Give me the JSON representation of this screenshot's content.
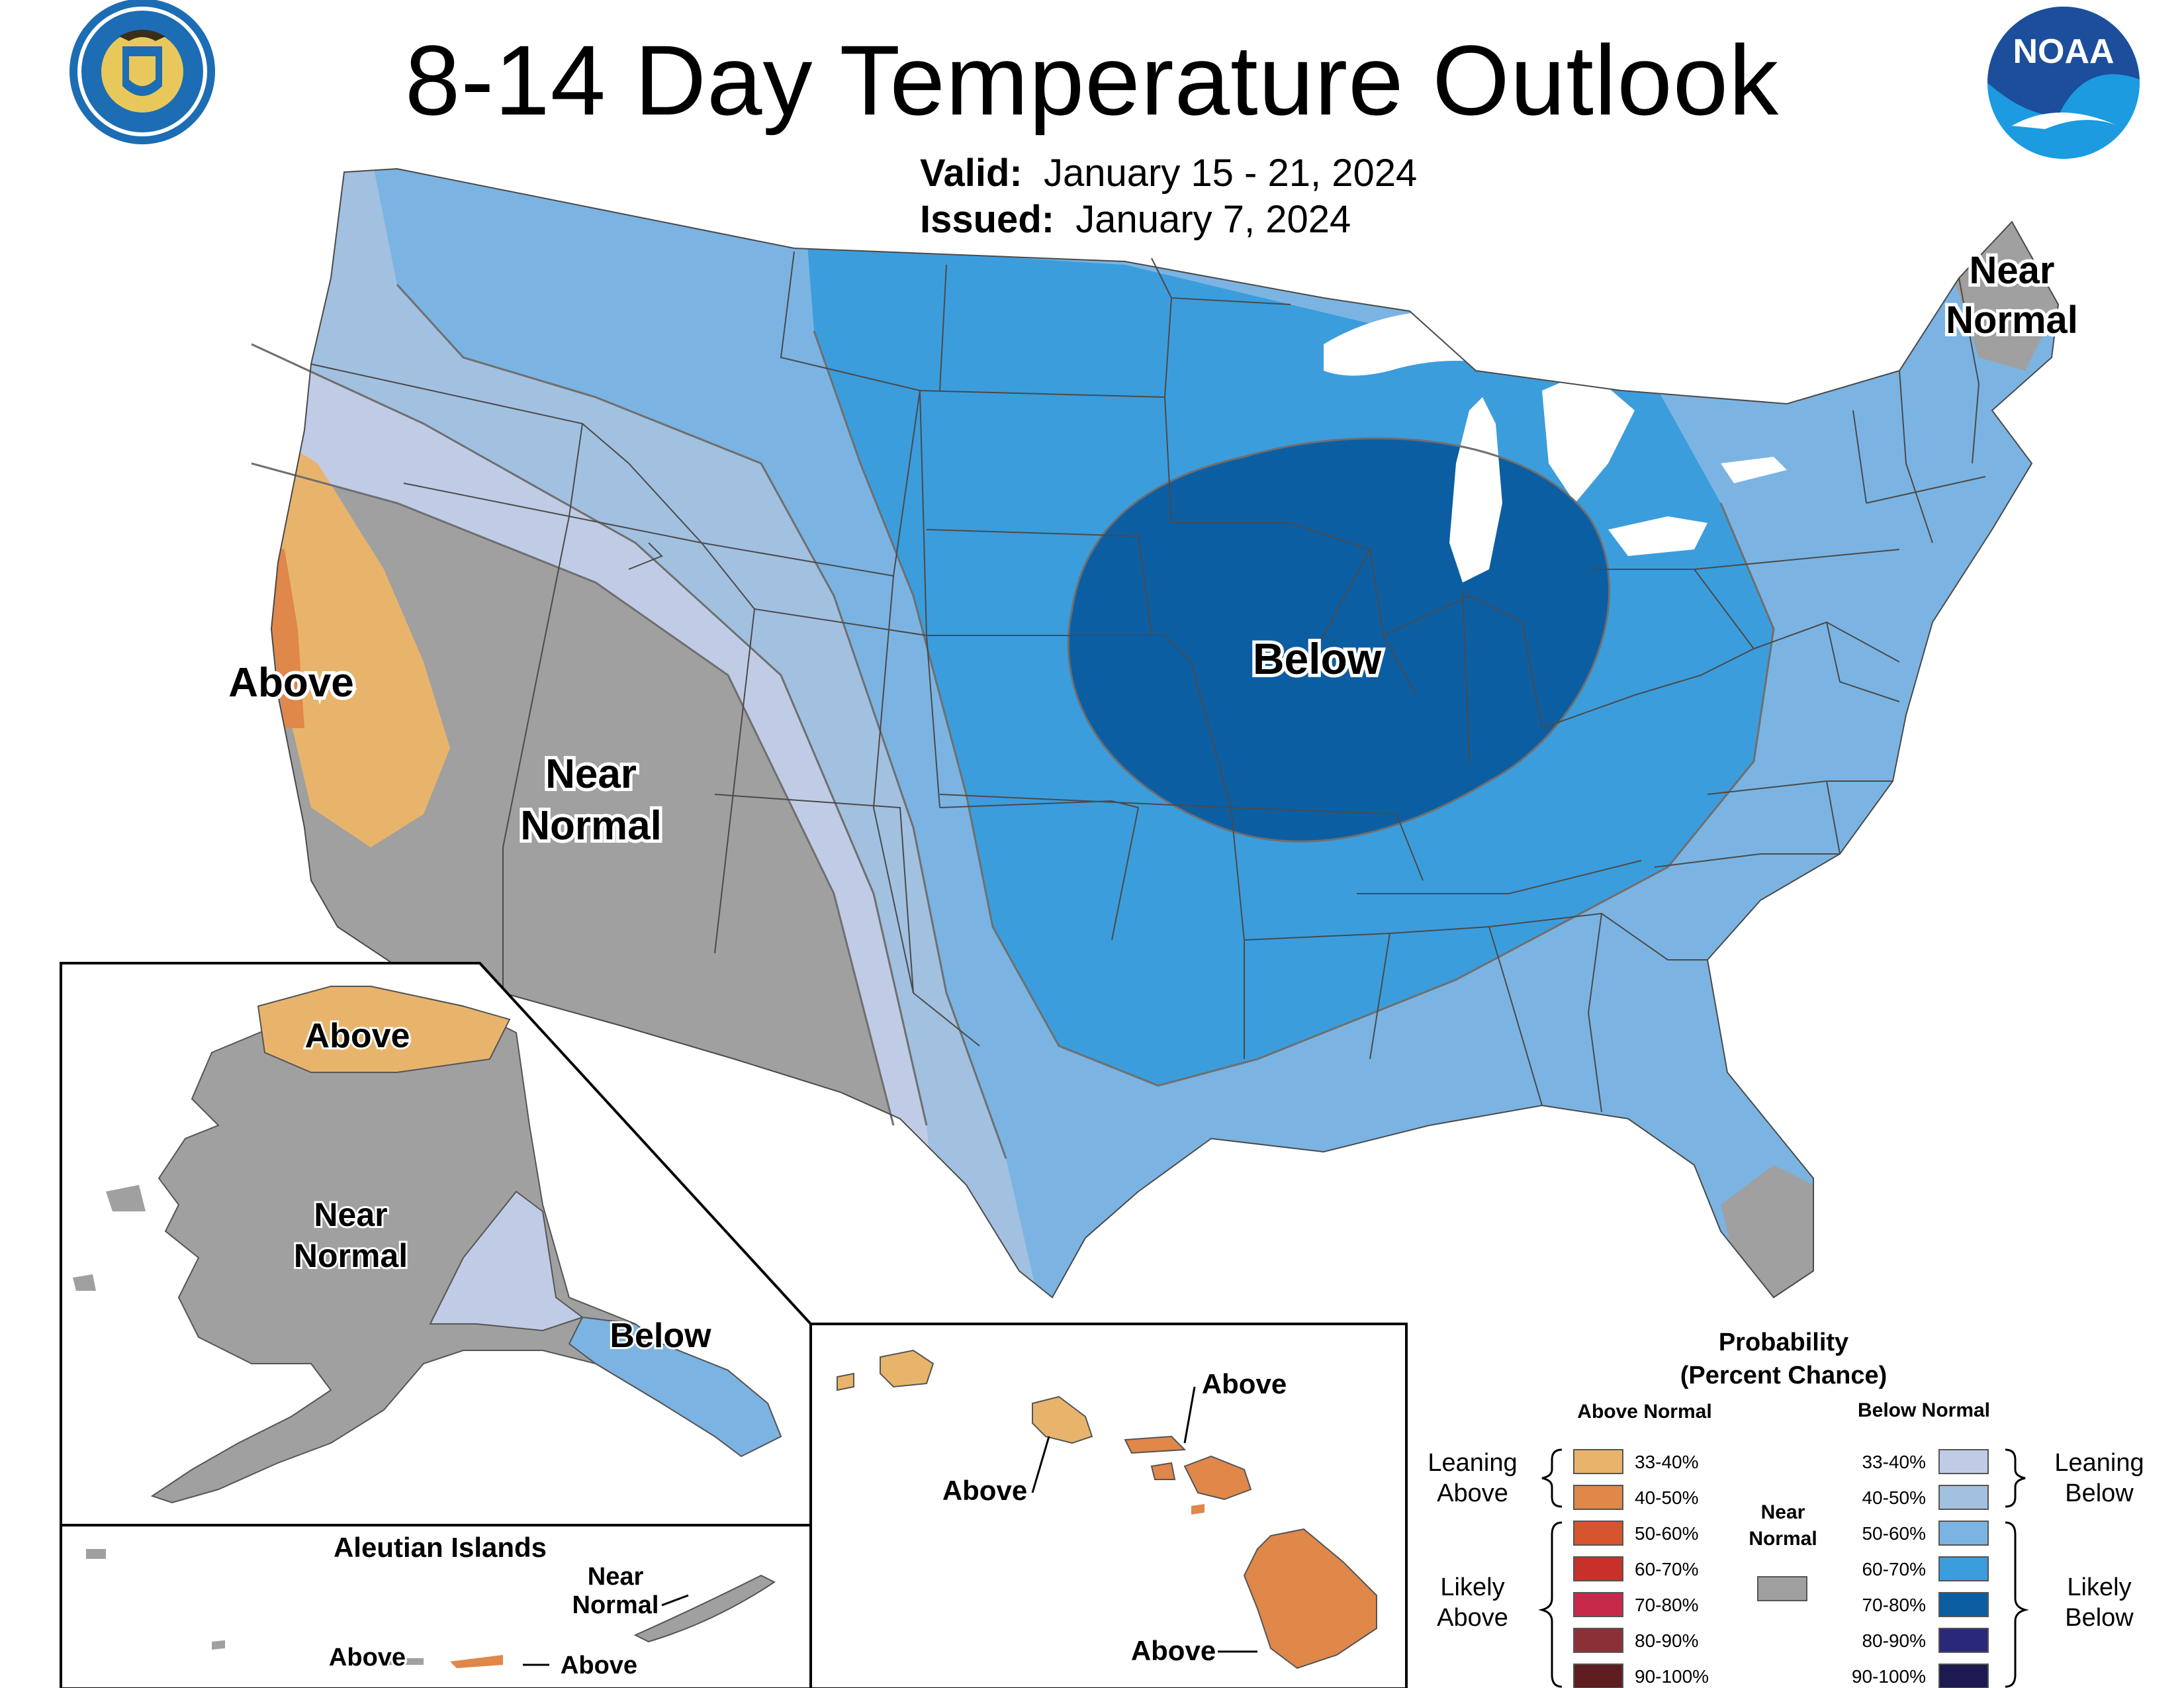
{
  "header": {
    "title": "8-14 Day Temperature Outlook",
    "valid_label": "Valid:",
    "valid_value": "January 15 - 21, 2024",
    "issued_label": "Issued:",
    "issued_value": "January 7, 2024"
  },
  "logos": {
    "left": "Department of Commerce seal",
    "right": "NOAA"
  },
  "map_labels": {
    "conus_below": "Below",
    "conus_above": "Above",
    "conus_near_line1": "Near",
    "conus_near_line2": "Normal",
    "northeast_near_line1": "Near",
    "northeast_near_line2": "Normal",
    "alaska_above": "Above",
    "alaska_near_line1": "Near",
    "alaska_near_line2": "Normal",
    "alaska_below": "Below",
    "aleutian_title": "Aleutian Islands",
    "aleutian_near_line1": "Near",
    "aleutian_near_line2": "Normal",
    "aleutian_above_left": "Above",
    "aleutian_above_right": "Above",
    "hawaii_above_top": "Above",
    "hawaii_above_left": "Above",
    "hawaii_above_bottom": "Above"
  },
  "legend": {
    "title_line1": "Probability",
    "title_line2": "(Percent Chance)",
    "above_header": "Above Normal",
    "below_header": "Below Normal",
    "near_line1": "Near",
    "near_line2": "Normal",
    "leaning_above_line1": "Leaning",
    "leaning_above_line2": "Above",
    "likely_above_line1": "Likely",
    "likely_above_line2": "Above",
    "leaning_below_line1": "Leaning",
    "leaning_below_line2": "Below",
    "likely_below_line1": "Likely",
    "likely_below_line2": "Below",
    "above_rows": [
      {
        "range": "33-40%",
        "color": "#E8B46C"
      },
      {
        "range": "40-50%",
        "color": "#E0874A"
      },
      {
        "range": "50-60%",
        "color": "#D5552E"
      },
      {
        "range": "60-70%",
        "color": "#C8302A"
      },
      {
        "range": "70-80%",
        "color": "#C8294A"
      },
      {
        "range": "80-90%",
        "color": "#8C3038"
      },
      {
        "range": "90-100%",
        "color": "#5E1E20"
      }
    ],
    "below_rows": [
      {
        "range": "33-40%",
        "color": "#C0CCE6"
      },
      {
        "range": "40-50%",
        "color": "#A2C0E0"
      },
      {
        "range": "50-60%",
        "color": "#7BB4E2"
      },
      {
        "range": "60-70%",
        "color": "#3C9DDC"
      },
      {
        "range": "70-80%",
        "color": "#0C5EA3"
      },
      {
        "range": "80-90%",
        "color": "#2A2878"
      },
      {
        "range": "90-100%",
        "color": "#1C1A50"
      }
    ],
    "near_color": "#A0A0A0"
  }
}
